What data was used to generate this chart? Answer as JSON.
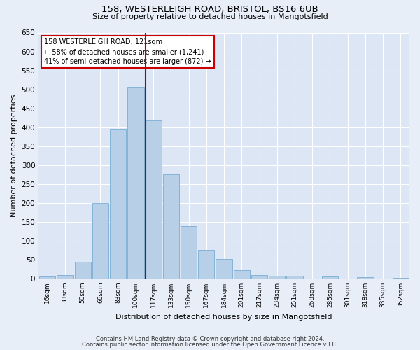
{
  "title1": "158, WESTERLEIGH ROAD, BRISTOL, BS16 6UB",
  "title2": "Size of property relative to detached houses in Mangotsfield",
  "xlabel": "Distribution of detached houses by size in Mangotsfield",
  "ylabel": "Number of detached properties",
  "categories": [
    "16sqm",
    "33sqm",
    "50sqm",
    "66sqm",
    "83sqm",
    "100sqm",
    "117sqm",
    "133sqm",
    "150sqm",
    "167sqm",
    "184sqm",
    "201sqm",
    "217sqm",
    "234sqm",
    "251sqm",
    "268sqm",
    "285sqm",
    "301sqm",
    "318sqm",
    "335sqm",
    "352sqm"
  ],
  "bar_values": [
    5,
    10,
    45,
    200,
    395,
    505,
    418,
    275,
    138,
    75,
    52,
    22,
    10,
    8,
    7,
    0,
    5,
    0,
    3,
    0,
    2
  ],
  "bar_color": "#b8cfe8",
  "bar_edge_color": "#7aadd4",
  "annotation_label": "158 WESTERLEIGH ROAD: 121sqm",
  "annotation_line1": "← 58% of detached houses are smaller (1,241)",
  "annotation_line2": "41% of semi-detached houses are larger (872) →",
  "ylim": [
    0,
    650
  ],
  "yticks": [
    0,
    50,
    100,
    150,
    200,
    250,
    300,
    350,
    400,
    450,
    500,
    550,
    600,
    650
  ],
  "plot_bg_color": "#dce6f5",
  "fig_bg_color": "#e8eef8",
  "grid_color": "#ffffff",
  "ref_line_color": "#aa0000",
  "footer1": "Contains HM Land Registry data © Crown copyright and database right 2024.",
  "footer2": "Contains public sector information licensed under the Open Government Licence v3.0."
}
